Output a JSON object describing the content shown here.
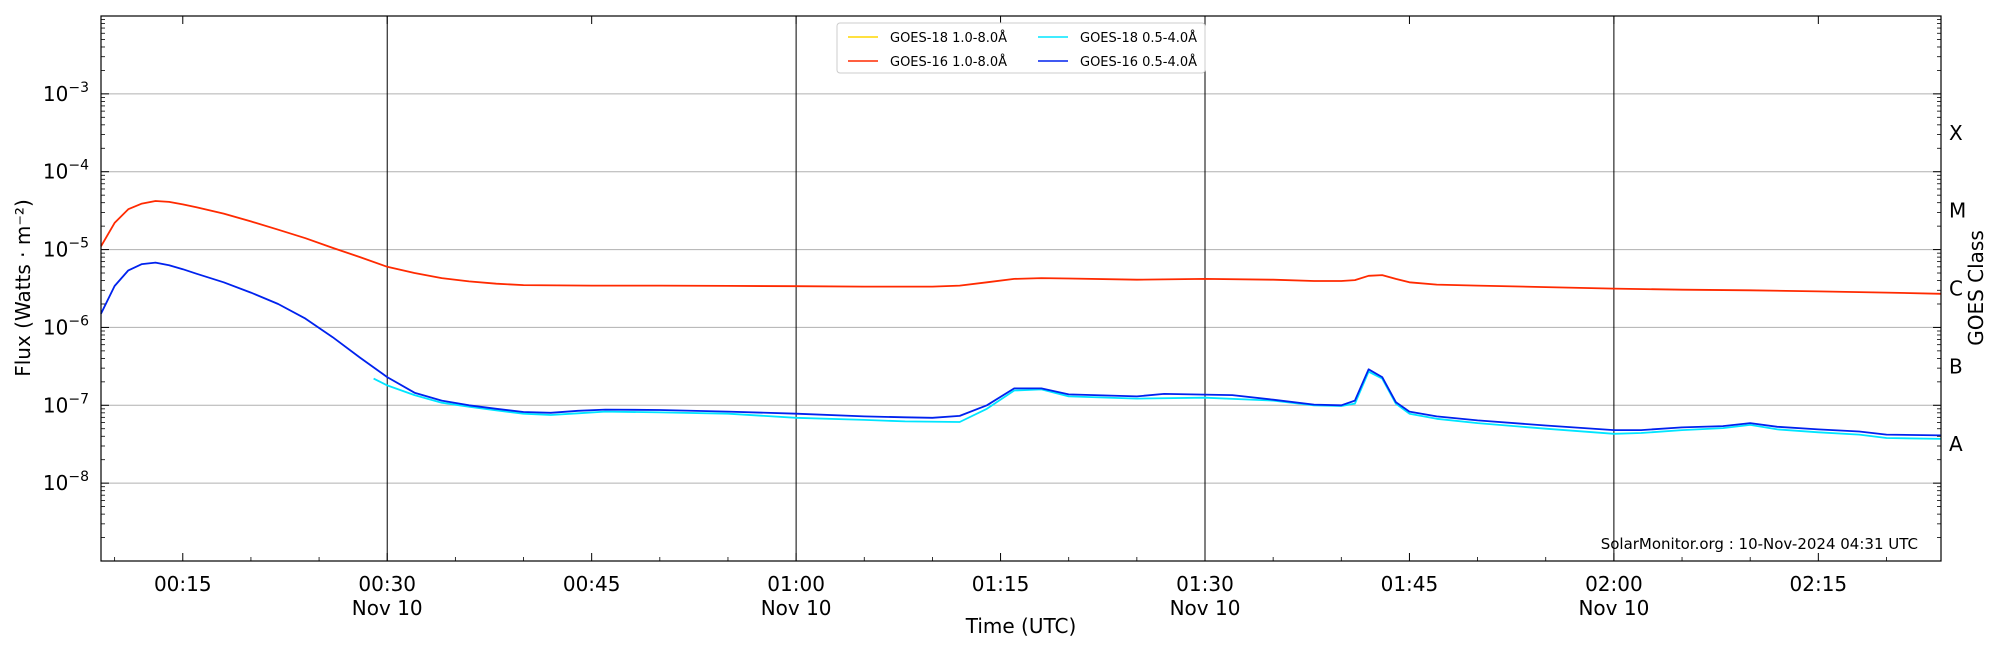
{
  "chart_data": {
    "type": "line",
    "xlabel": "Time (UTC)",
    "ylabel": "Flux (Watts · m⁻²)",
    "y2label": "GOES Class",
    "yscale": "log",
    "ylim": [
      1e-09,
      0.01
    ],
    "xlim_minutes": [
      "00:09",
      "02:24"
    ],
    "grid": "horizontal at decades, vertical at half-hour marks",
    "legend_position": "top-center",
    "credit": "SolarMonitor.org : 10-Nov-2024 04:31 UTC",
    "y_ticks": [
      {
        "value": 1e-08,
        "base": "10",
        "exp": "−8"
      },
      {
        "value": 1e-07,
        "base": "10",
        "exp": "−7"
      },
      {
        "value": 1e-06,
        "base": "10",
        "exp": "−6"
      },
      {
        "value": 1e-05,
        "base": "10",
        "exp": "−5"
      },
      {
        "value": 0.0001,
        "base": "10",
        "exp": "−4"
      },
      {
        "value": 0.001,
        "base": "10",
        "exp": "−3"
      }
    ],
    "goes_classes": [
      {
        "label": "A",
        "value": 3.16e-08
      },
      {
        "label": "B",
        "value": 3.16e-07
      },
      {
        "label": "C",
        "value": 3.16e-06
      },
      {
        "label": "M",
        "value": 3.16e-05
      },
      {
        "label": "X",
        "value": 0.000316
      }
    ],
    "x_ticks": [
      {
        "time": "00:15",
        "date": ""
      },
      {
        "time": "00:30",
        "date": "Nov 10"
      },
      {
        "time": "00:45",
        "date": ""
      },
      {
        "time": "01:00",
        "date": "Nov 10"
      },
      {
        "time": "01:15",
        "date": ""
      },
      {
        "time": "01:30",
        "date": "Nov 10"
      },
      {
        "time": "01:45",
        "date": ""
      },
      {
        "time": "02:00",
        "date": "Nov 10"
      },
      {
        "time": "02:15",
        "date": ""
      }
    ],
    "series": [
      {
        "name": "GOES-18 1.0-8.0Å",
        "color": "#ffd700",
        "points": []
      },
      {
        "name": "GOES-16 1.0-8.0Å",
        "color": "#ff2a00",
        "points": [
          [
            "00:09",
            1.1e-05
          ],
          [
            "00:10",
            2.2e-05
          ],
          [
            "00:11",
            3.3e-05
          ],
          [
            "00:12",
            3.9e-05
          ],
          [
            "00:13",
            4.2e-05
          ],
          [
            "00:14",
            4.1e-05
          ],
          [
            "00:15",
            3.8e-05
          ],
          [
            "00:16",
            3.5e-05
          ],
          [
            "00:18",
            2.9e-05
          ],
          [
            "00:20",
            2.3e-05
          ],
          [
            "00:22",
            1.8e-05
          ],
          [
            "00:24",
            1.4e-05
          ],
          [
            "00:26",
            1.05e-05
          ],
          [
            "00:28",
            8e-06
          ],
          [
            "00:30",
            6e-06
          ],
          [
            "00:32",
            5e-06
          ],
          [
            "00:34",
            4.3e-06
          ],
          [
            "00:36",
            3.9e-06
          ],
          [
            "00:38",
            3.65e-06
          ],
          [
            "00:40",
            3.5e-06
          ],
          [
            "00:45",
            3.45e-06
          ],
          [
            "00:50",
            3.45e-06
          ],
          [
            "00:55",
            3.42e-06
          ],
          [
            "01:00",
            3.38e-06
          ],
          [
            "01:05",
            3.35e-06
          ],
          [
            "01:10",
            3.35e-06
          ],
          [
            "01:12",
            3.45e-06
          ],
          [
            "01:14",
            3.8e-06
          ],
          [
            "01:16",
            4.2e-06
          ],
          [
            "01:18",
            4.3e-06
          ],
          [
            "01:20",
            4.25e-06
          ],
          [
            "01:25",
            4.1e-06
          ],
          [
            "01:30",
            4.2e-06
          ],
          [
            "01:35",
            4.1e-06
          ],
          [
            "01:38",
            3.95e-06
          ],
          [
            "01:40",
            3.95e-06
          ],
          [
            "01:41",
            4.05e-06
          ],
          [
            "01:42",
            4.6e-06
          ],
          [
            "01:43",
            4.7e-06
          ],
          [
            "01:44",
            4.2e-06
          ],
          [
            "01:45",
            3.8e-06
          ],
          [
            "01:47",
            3.55e-06
          ],
          [
            "01:50",
            3.45e-06
          ],
          [
            "01:55",
            3.3e-06
          ],
          [
            "02:00",
            3.15e-06
          ],
          [
            "02:05",
            3.05e-06
          ],
          [
            "02:10",
            3e-06
          ],
          [
            "02:15",
            2.9e-06
          ],
          [
            "02:20",
            2.8e-06
          ],
          [
            "02:24",
            2.7e-06
          ]
        ]
      },
      {
        "name": "GOES-18 0.5-4.0Å",
        "color": "#00e5ff",
        "points": [
          [
            "00:29",
            2.2e-07
          ],
          [
            "00:30",
            1.8e-07
          ],
          [
            "00:32",
            1.35e-07
          ],
          [
            "00:34",
            1.08e-07
          ],
          [
            "00:36",
            9.6e-08
          ],
          [
            "00:38",
            8.6e-08
          ],
          [
            "00:40",
            7.8e-08
          ],
          [
            "00:42",
            7.5e-08
          ],
          [
            "00:44",
            7.9e-08
          ],
          [
            "00:46",
            8.3e-08
          ],
          [
            "00:50",
            8.1e-08
          ],
          [
            "00:55",
            7.8e-08
          ],
          [
            "01:00",
            6.9e-08
          ],
          [
            "01:05",
            6.5e-08
          ],
          [
            "01:08",
            6.2e-08
          ],
          [
            "01:12",
            6.1e-08
          ],
          [
            "01:14",
            9e-08
          ],
          [
            "01:16",
            1.55e-07
          ],
          [
            "01:18",
            1.6e-07
          ],
          [
            "01:20",
            1.3e-07
          ],
          [
            "01:25",
            1.22e-07
          ],
          [
            "01:30",
            1.25e-07
          ],
          [
            "01:35",
            1.15e-07
          ],
          [
            "01:38",
            1e-07
          ],
          [
            "01:40",
            9.8e-08
          ],
          [
            "01:41",
            1.05e-07
          ],
          [
            "01:42",
            2.7e-07
          ],
          [
            "01:43",
            2.2e-07
          ],
          [
            "01:44",
            1.05e-07
          ],
          [
            "01:45",
            7.8e-08
          ],
          [
            "01:47",
            6.7e-08
          ],
          [
            "01:50",
            5.9e-08
          ],
          [
            "01:55",
            5e-08
          ],
          [
            "02:00",
            4.3e-08
          ],
          [
            "02:02",
            4.4e-08
          ],
          [
            "02:05",
            4.8e-08
          ],
          [
            "02:08",
            5.1e-08
          ],
          [
            "02:10",
            5.6e-08
          ],
          [
            "02:12",
            4.9e-08
          ],
          [
            "02:15",
            4.5e-08
          ],
          [
            "02:18",
            4.2e-08
          ],
          [
            "02:20",
            3.8e-08
          ],
          [
            "02:24",
            3.7e-08
          ]
        ]
      },
      {
        "name": "GOES-16 0.5-4.0Å",
        "color": "#0022ee",
        "points": [
          [
            "00:09",
            1.5e-06
          ],
          [
            "00:10",
            3.4e-06
          ],
          [
            "00:11",
            5.4e-06
          ],
          [
            "00:12",
            6.5e-06
          ],
          [
            "00:13",
            6.8e-06
          ],
          [
            "00:14",
            6.3e-06
          ],
          [
            "00:15",
            5.6e-06
          ],
          [
            "00:16",
            4.9e-06
          ],
          [
            "00:18",
            3.8e-06
          ],
          [
            "00:20",
            2.8e-06
          ],
          [
            "00:22",
            2e-06
          ],
          [
            "00:24",
            1.3e-06
          ],
          [
            "00:26",
            7.5e-07
          ],
          [
            "00:28",
            4.1e-07
          ],
          [
            "00:30",
            2.3e-07
          ],
          [
            "00:32",
            1.45e-07
          ],
          [
            "00:34",
            1.15e-07
          ],
          [
            "00:36",
            1e-07
          ],
          [
            "00:38",
            9e-08
          ],
          [
            "00:40",
            8.2e-08
          ],
          [
            "00:42",
            8e-08
          ],
          [
            "00:44",
            8.5e-08
          ],
          [
            "00:46",
            8.8e-08
          ],
          [
            "00:50",
            8.7e-08
          ],
          [
            "00:55",
            8.3e-08
          ],
          [
            "01:00",
            7.8e-08
          ],
          [
            "01:05",
            7.2e-08
          ],
          [
            "01:08",
            7e-08
          ],
          [
            "01:10",
            6.9e-08
          ],
          [
            "01:12",
            7.3e-08
          ],
          [
            "01:14",
            1e-07
          ],
          [
            "01:16",
            1.65e-07
          ],
          [
            "01:18",
            1.65e-07
          ],
          [
            "01:20",
            1.38e-07
          ],
          [
            "01:25",
            1.3e-07
          ],
          [
            "01:27",
            1.4e-07
          ],
          [
            "01:30",
            1.37e-07
          ],
          [
            "01:32",
            1.35e-07
          ],
          [
            "01:35",
            1.18e-07
          ],
          [
            "01:38",
            1.02e-07
          ],
          [
            "01:40",
            1e-07
          ],
          [
            "01:41",
            1.15e-07
          ],
          [
            "01:42",
            2.9e-07
          ],
          [
            "01:43",
            2.3e-07
          ],
          [
            "01:44",
            1.1e-07
          ],
          [
            "01:45",
            8.3e-08
          ],
          [
            "01:47",
            7.2e-08
          ],
          [
            "01:50",
            6.4e-08
          ],
          [
            "01:55",
            5.5e-08
          ],
          [
            "02:00",
            4.8e-08
          ],
          [
            "02:02",
            4.8e-08
          ],
          [
            "02:05",
            5.2e-08
          ],
          [
            "02:08",
            5.4e-08
          ],
          [
            "02:10",
            5.9e-08
          ],
          [
            "02:12",
            5.3e-08
          ],
          [
            "02:15",
            4.9e-08
          ],
          [
            "02:18",
            4.6e-08
          ],
          [
            "02:20",
            4.2e-08
          ],
          [
            "02:24",
            4.1e-08
          ]
        ]
      }
    ]
  }
}
